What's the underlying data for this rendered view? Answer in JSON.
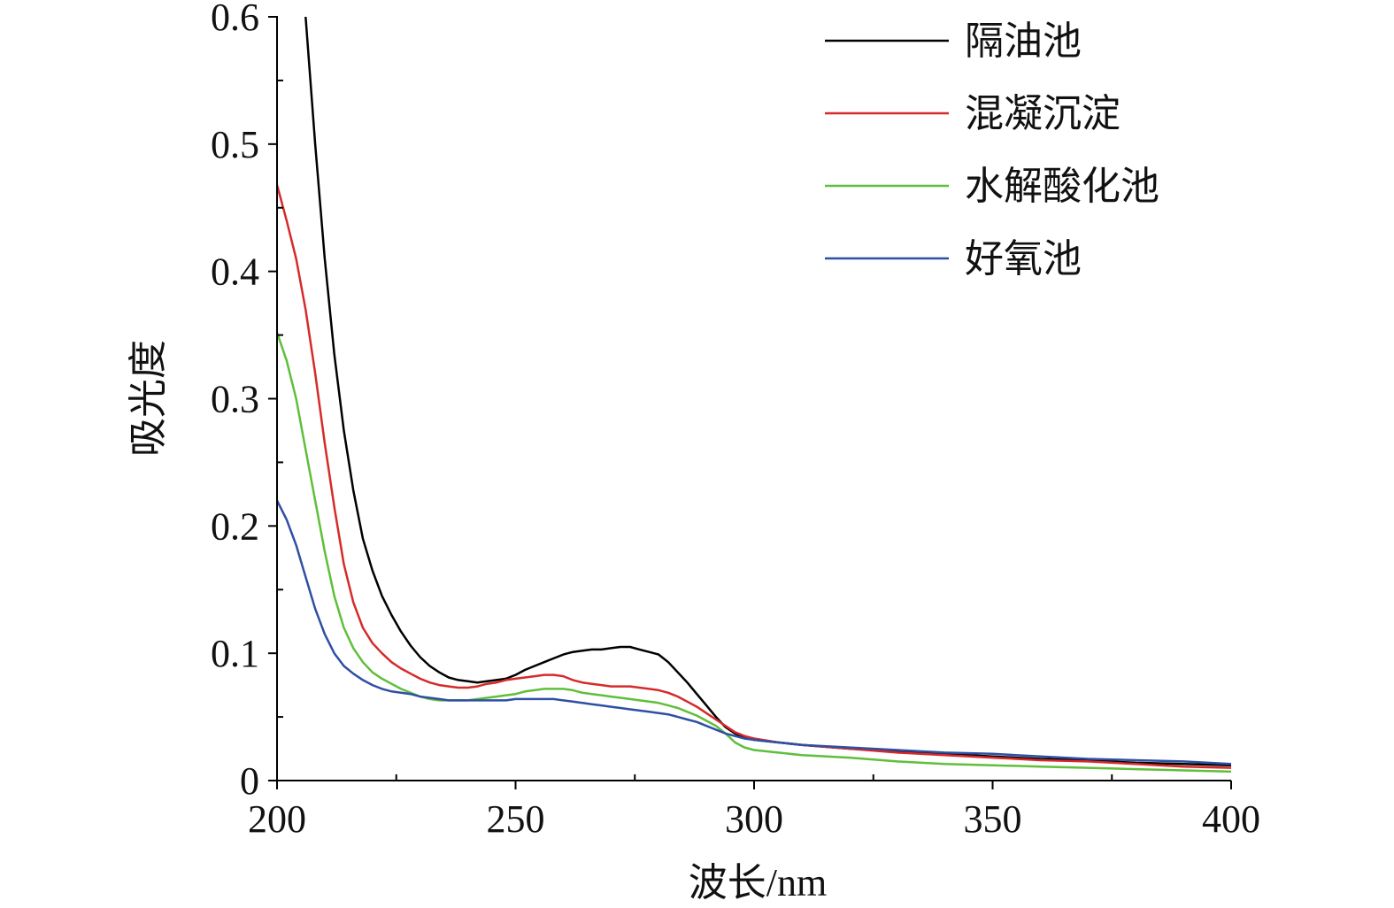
{
  "chart_data": {
    "type": "line",
    "xlabel": "波长/nm",
    "ylabel": "吸光度",
    "xlim": [
      200,
      400
    ],
    "ylim": [
      0,
      0.6
    ],
    "xticks": [
      "200",
      "250",
      "300",
      "350",
      "400"
    ],
    "yticks": [
      "0",
      "0.1",
      "0.2",
      "0.3",
      "0.4",
      "0.5",
      "0.6"
    ],
    "grid": false,
    "legend_position": "top-right",
    "series": [
      {
        "name": "隔油池",
        "color": "#000000",
        "x": [
          206,
          208,
          210,
          212,
          214,
          216,
          218,
          220,
          222,
          224,
          226,
          228,
          230,
          232,
          234,
          236,
          238,
          240,
          242,
          244,
          246,
          248,
          250,
          252,
          254,
          256,
          258,
          260,
          262,
          264,
          266,
          268,
          270,
          272,
          274,
          276,
          278,
          280,
          282,
          284,
          286,
          288,
          290,
          292,
          294,
          296,
          298,
          300,
          305,
          310,
          320,
          330,
          340,
          350,
          360,
          370,
          380,
          390,
          400
        ],
        "y": [
          0.6,
          0.5,
          0.41,
          0.335,
          0.275,
          0.228,
          0.19,
          0.165,
          0.145,
          0.13,
          0.117,
          0.106,
          0.097,
          0.09,
          0.085,
          0.081,
          0.079,
          0.078,
          0.077,
          0.078,
          0.079,
          0.08,
          0.083,
          0.087,
          0.09,
          0.093,
          0.096,
          0.099,
          0.101,
          0.102,
          0.103,
          0.103,
          0.104,
          0.105,
          0.105,
          0.103,
          0.101,
          0.099,
          0.093,
          0.085,
          0.077,
          0.068,
          0.059,
          0.05,
          0.042,
          0.037,
          0.034,
          0.032,
          0.03,
          0.028,
          0.025,
          0.023,
          0.021,
          0.019,
          0.017,
          0.016,
          0.014,
          0.013,
          0.012
        ]
      },
      {
        "name": "混凝沉淀",
        "color": "#d62a2a",
        "x": [
          200,
          202,
          204,
          206,
          208,
          210,
          212,
          214,
          216,
          218,
          220,
          222,
          224,
          226,
          228,
          230,
          232,
          234,
          236,
          238,
          240,
          242,
          244,
          246,
          248,
          250,
          252,
          254,
          256,
          258,
          260,
          262,
          264,
          266,
          268,
          270,
          272,
          274,
          276,
          278,
          280,
          282,
          284,
          286,
          288,
          290,
          292,
          294,
          296,
          298,
          300,
          305,
          310,
          320,
          330,
          340,
          350,
          360,
          370,
          380,
          390,
          400
        ],
        "y": [
          0.468,
          0.44,
          0.41,
          0.37,
          0.32,
          0.265,
          0.215,
          0.17,
          0.14,
          0.12,
          0.108,
          0.1,
          0.093,
          0.088,
          0.084,
          0.08,
          0.077,
          0.075,
          0.074,
          0.073,
          0.073,
          0.074,
          0.076,
          0.077,
          0.079,
          0.08,
          0.081,
          0.082,
          0.083,
          0.083,
          0.082,
          0.079,
          0.077,
          0.076,
          0.075,
          0.074,
          0.074,
          0.074,
          0.073,
          0.072,
          0.071,
          0.069,
          0.066,
          0.062,
          0.058,
          0.053,
          0.048,
          0.043,
          0.038,
          0.035,
          0.033,
          0.03,
          0.028,
          0.025,
          0.022,
          0.02,
          0.018,
          0.016,
          0.015,
          0.013,
          0.011,
          0.01
        ]
      },
      {
        "name": "水解酸化池",
        "color": "#5fbf3a",
        "x": [
          200,
          202,
          204,
          206,
          208,
          210,
          212,
          214,
          216,
          218,
          220,
          222,
          224,
          226,
          228,
          230,
          232,
          234,
          236,
          238,
          240,
          242,
          244,
          246,
          248,
          250,
          252,
          254,
          256,
          258,
          260,
          262,
          264,
          266,
          268,
          270,
          272,
          274,
          276,
          278,
          280,
          282,
          284,
          286,
          288,
          290,
          292,
          294,
          296,
          298,
          300,
          305,
          310,
          320,
          330,
          340,
          350,
          360,
          370,
          380,
          390,
          400
        ],
        "y": [
          0.352,
          0.33,
          0.3,
          0.26,
          0.22,
          0.18,
          0.145,
          0.12,
          0.104,
          0.093,
          0.085,
          0.08,
          0.076,
          0.072,
          0.069,
          0.066,
          0.064,
          0.063,
          0.063,
          0.063,
          0.063,
          0.064,
          0.065,
          0.066,
          0.067,
          0.068,
          0.07,
          0.071,
          0.072,
          0.072,
          0.072,
          0.071,
          0.069,
          0.068,
          0.067,
          0.066,
          0.065,
          0.064,
          0.063,
          0.062,
          0.061,
          0.059,
          0.057,
          0.054,
          0.051,
          0.047,
          0.043,
          0.037,
          0.03,
          0.026,
          0.024,
          0.022,
          0.02,
          0.018,
          0.015,
          0.013,
          0.012,
          0.011,
          0.01,
          0.009,
          0.008,
          0.007
        ]
      },
      {
        "name": "好氧池",
        "color": "#2e4fa3",
        "x": [
          200,
          202,
          204,
          206,
          208,
          210,
          212,
          214,
          216,
          218,
          220,
          222,
          224,
          226,
          228,
          230,
          232,
          234,
          236,
          238,
          240,
          242,
          244,
          246,
          248,
          250,
          252,
          254,
          256,
          258,
          260,
          262,
          264,
          266,
          268,
          270,
          272,
          274,
          276,
          278,
          280,
          282,
          284,
          286,
          288,
          290,
          292,
          294,
          296,
          298,
          300,
          305,
          310,
          320,
          330,
          340,
          350,
          360,
          370,
          380,
          390,
          400
        ],
        "y": [
          0.22,
          0.205,
          0.185,
          0.16,
          0.135,
          0.115,
          0.1,
          0.09,
          0.084,
          0.079,
          0.075,
          0.072,
          0.07,
          0.069,
          0.068,
          0.066,
          0.065,
          0.064,
          0.063,
          0.063,
          0.063,
          0.063,
          0.063,
          0.063,
          0.063,
          0.064,
          0.064,
          0.064,
          0.064,
          0.064,
          0.063,
          0.062,
          0.061,
          0.06,
          0.059,
          0.058,
          0.057,
          0.056,
          0.055,
          0.054,
          0.053,
          0.052,
          0.05,
          0.048,
          0.046,
          0.043,
          0.04,
          0.037,
          0.035,
          0.033,
          0.032,
          0.03,
          0.028,
          0.026,
          0.024,
          0.022,
          0.021,
          0.019,
          0.017,
          0.016,
          0.015,
          0.013
        ]
      }
    ]
  }
}
